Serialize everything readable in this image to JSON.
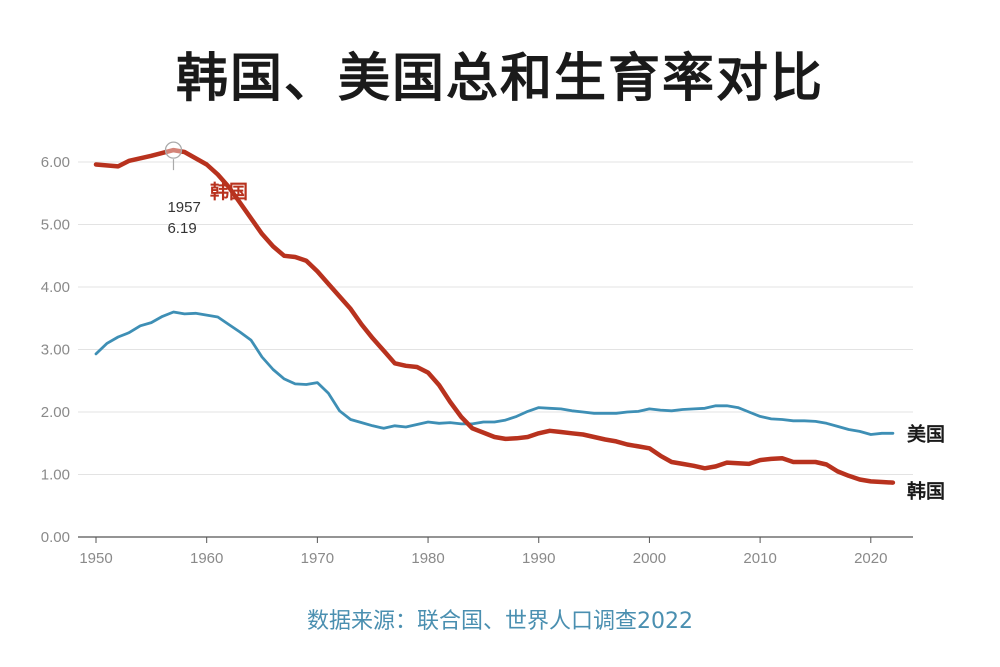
{
  "title": "韩国、美国总和生育率对比",
  "source": "数据来源：联合国、世界人口调查2022",
  "chart_data": {
    "type": "line",
    "title": "韩国、美国总和生育率对比",
    "xlabel": "",
    "ylabel": "",
    "xlim": [
      1950,
      2023
    ],
    "ylim": [
      0,
      6
    ],
    "x_ticks": [
      "1950",
      "1960",
      "1970",
      "1980",
      "1990",
      "2000",
      "2010",
      "2020"
    ],
    "y_ticks": [
      "0.00",
      "1.00",
      "2.00",
      "3.00",
      "4.00",
      "5.00",
      "6.00"
    ],
    "grid": true,
    "series": [
      {
        "name": "韩国",
        "color": "#b8321e",
        "x": [
          1950,
          1952,
          1953,
          1955,
          1957,
          1958,
          1960,
          1961,
          1962,
          1963,
          1964,
          1965,
          1966,
          1967,
          1968,
          1969,
          1970,
          1971,
          1972,
          1973,
          1974,
          1975,
          1976,
          1977,
          1978,
          1979,
          1980,
          1981,
          1982,
          1983,
          1984,
          1985,
          1986,
          1987,
          1988,
          1989,
          1990,
          1991,
          1992,
          1993,
          1994,
          1995,
          1996,
          1997,
          1998,
          1999,
          2000,
          2001,
          2002,
          2003,
          2004,
          2005,
          2006,
          2007,
          2008,
          2009,
          2010,
          2011,
          2012,
          2013,
          2014,
          2015,
          2016,
          2017,
          2018,
          2019,
          2020,
          2021,
          2022
        ],
        "y": [
          5.96,
          5.93,
          6.02,
          6.1,
          6.19,
          6.16,
          5.96,
          5.8,
          5.6,
          5.35,
          5.1,
          4.85,
          4.65,
          4.5,
          4.48,
          4.42,
          4.25,
          4.05,
          3.85,
          3.65,
          3.4,
          3.18,
          2.98,
          2.78,
          2.74,
          2.72,
          2.63,
          2.43,
          2.16,
          1.92,
          1.74,
          1.67,
          1.6,
          1.57,
          1.58,
          1.6,
          1.66,
          1.7,
          1.68,
          1.66,
          1.64,
          1.6,
          1.56,
          1.53,
          1.48,
          1.45,
          1.42,
          1.3,
          1.2,
          1.17,
          1.14,
          1.1,
          1.13,
          1.19,
          1.18,
          1.17,
          1.23,
          1.25,
          1.26,
          1.2,
          1.2,
          1.2,
          1.16,
          1.05,
          0.98,
          0.92,
          0.89,
          0.88,
          0.87
        ]
      },
      {
        "name": "美国",
        "color": "#3e8fb5",
        "x": [
          1950,
          1951,
          1952,
          1953,
          1954,
          1955,
          1956,
          1957,
          1958,
          1959,
          1960,
          1961,
          1962,
          1963,
          1964,
          1965,
          1966,
          1967,
          1968,
          1969,
          1970,
          1971,
          1972,
          1973,
          1974,
          1975,
          1976,
          1977,
          1978,
          1979,
          1980,
          1981,
          1982,
          1983,
          1984,
          1985,
          1986,
          1987,
          1988,
          1989,
          1990,
          1991,
          1992,
          1993,
          1994,
          1995,
          1996,
          1997,
          1998,
          1999,
          2000,
          2001,
          2002,
          2003,
          2004,
          2005,
          2006,
          2007,
          2008,
          2009,
          2010,
          2011,
          2012,
          2013,
          2014,
          2015,
          2016,
          2017,
          2018,
          2019,
          2020,
          2021,
          2022
        ],
        "y": [
          2.93,
          3.1,
          3.2,
          3.27,
          3.38,
          3.43,
          3.53,
          3.6,
          3.57,
          3.58,
          3.55,
          3.52,
          3.4,
          3.28,
          3.15,
          2.88,
          2.68,
          2.53,
          2.45,
          2.44,
          2.47,
          2.3,
          2.02,
          1.88,
          1.83,
          1.78,
          1.74,
          1.78,
          1.76,
          1.8,
          1.84,
          1.82,
          1.83,
          1.81,
          1.81,
          1.84,
          1.84,
          1.87,
          1.93,
          2.01,
          2.07,
          2.06,
          2.05,
          2.02,
          2.0,
          1.98,
          1.98,
          1.98,
          2.0,
          2.01,
          2.05,
          2.03,
          2.02,
          2.04,
          2.05,
          2.06,
          2.1,
          2.1,
          2.07,
          2.0,
          1.93,
          1.89,
          1.88,
          1.86,
          1.86,
          1.85,
          1.82,
          1.77,
          1.72,
          1.69,
          1.64,
          1.66,
          1.66
        ]
      }
    ],
    "end_labels": [
      "美国",
      "韩国"
    ],
    "inline_label": "韩国",
    "annotation": {
      "year": "1957",
      "value": "6.19"
    }
  }
}
